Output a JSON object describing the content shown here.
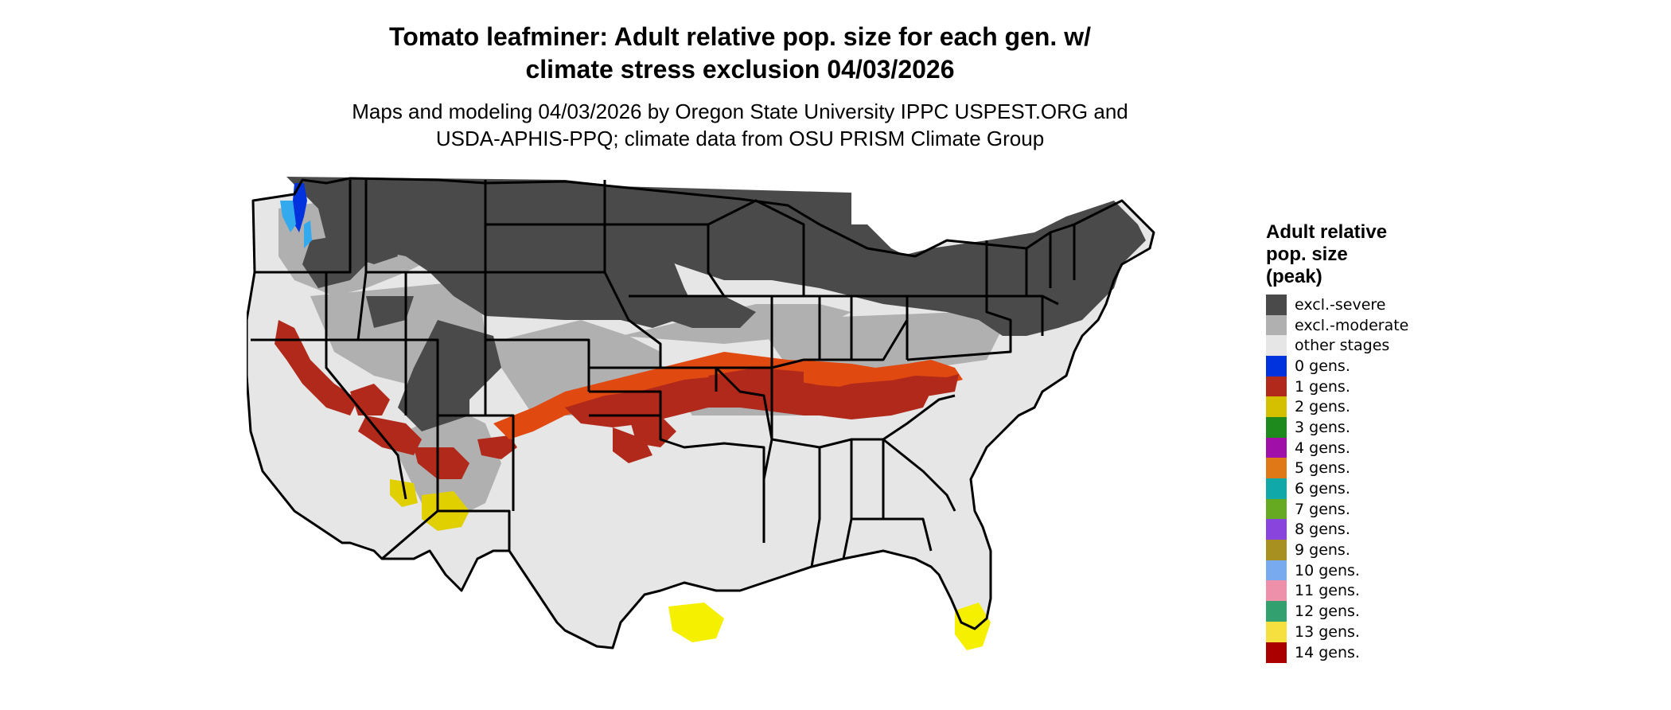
{
  "header": {
    "title_line1": "Tomato leafminer: Adult relative pop. size for each gen. w/",
    "title_line2": "climate stress exclusion 04/03/2026",
    "subtitle_line1": "Maps and modeling 04/03/2026 by Oregon State University IPPC USPEST.ORG and",
    "subtitle_line2": "USDA-APHIS-PPQ; climate data from OSU PRISM Climate Group"
  },
  "legend": {
    "title_line1": "Adult relative",
    "title_line2": "pop. size",
    "title_line3": "(peak)",
    "items": [
      {
        "label": "excl.-severe",
        "color": "#4a4a4a"
      },
      {
        "label": "excl.-moderate",
        "color": "#b0b0b0"
      },
      {
        "label": "other stages",
        "color": "#e6e6e6"
      },
      {
        "label": "0 gens.",
        "color": "#0033dd"
      },
      {
        "label": "1 gens.",
        "color": "#b0291a"
      },
      {
        "label": "2 gens.",
        "color": "#d4c000"
      },
      {
        "label": "3 gens.",
        "color": "#1e8a1e"
      },
      {
        "label": "4 gens.",
        "color": "#a010a8"
      },
      {
        "label": "5 gens.",
        "color": "#e07818"
      },
      {
        "label": "6 gens.",
        "color": "#10a8a8"
      },
      {
        "label": "7 gens.",
        "color": "#66aa22"
      },
      {
        "label": "8 gens.",
        "color": "#8844dd"
      },
      {
        "label": "9 gens.",
        "color": "#a89020"
      },
      {
        "label": "10 gens.",
        "color": "#77aaee"
      },
      {
        "label": "11 gens.",
        "color": "#ee90aa"
      },
      {
        "label": "12 gens.",
        "color": "#33a070"
      },
      {
        "label": "13 gens.",
        "color": "#f5e040"
      },
      {
        "label": "14 gens.",
        "color": "#aa0000"
      }
    ]
  },
  "map": {
    "colors": {
      "severe": "#4a4a4a",
      "moderate": "#b0b0b0",
      "other": "#e6e6e6",
      "gen0": "#0033dd",
      "gen0_light": "#33aaee",
      "gen1": "#b0291a",
      "gen1_bright": "#e04a10",
      "gen2": "#e0d000",
      "gen2_bright": "#f5f000",
      "border": "#000000"
    }
  }
}
